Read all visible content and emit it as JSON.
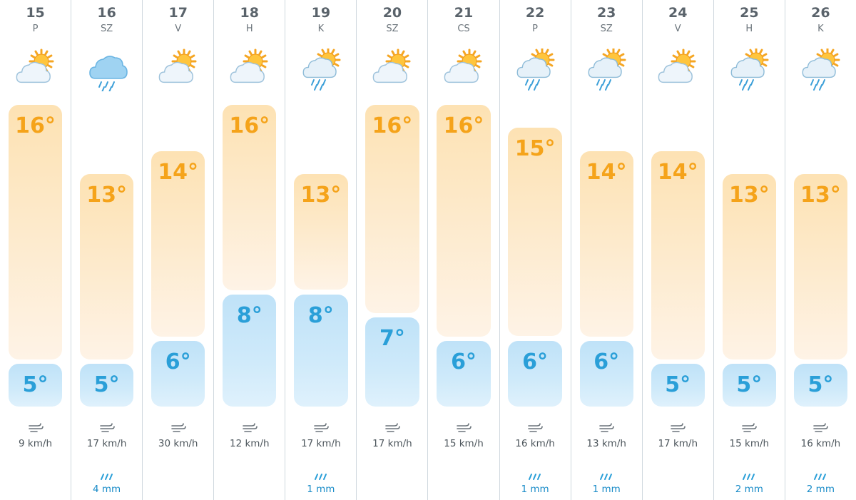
{
  "scale": {
    "tmin": 5,
    "tmax": 16
  },
  "colors": {
    "max_text": "#f5a31a",
    "min_text": "#2a9fd8",
    "precip_text": "#1a8cc8"
  },
  "days": [
    {
      "date": "15",
      "day": "P",
      "icon": "sun-cloud-icon",
      "tmax": "16°",
      "tmin": "5°",
      "tmax_value": 16,
      "tmin_value": 5,
      "wind": "9 km/h",
      "precip": ""
    },
    {
      "date": "16",
      "day": "SZ",
      "icon": "rain-cloud-icon",
      "tmax": "13°",
      "tmin": "5°",
      "tmax_value": 13,
      "tmin_value": 5,
      "wind": "17 km/h",
      "precip": "4 mm"
    },
    {
      "date": "17",
      "day": "V",
      "icon": "sun-cloud-icon",
      "tmax": "14°",
      "tmin": "6°",
      "tmax_value": 14,
      "tmin_value": 6,
      "wind": "30 km/h",
      "precip": ""
    },
    {
      "date": "18",
      "day": "H",
      "icon": "sun-cloud-icon",
      "tmax": "16°",
      "tmin": "8°",
      "tmax_value": 16,
      "tmin_value": 8,
      "wind": "12 km/h",
      "precip": ""
    },
    {
      "date": "19",
      "day": "K",
      "icon": "sun-rain-icon",
      "tmax": "13°",
      "tmin": "8°",
      "tmax_value": 13,
      "tmin_value": 8,
      "wind": "17 km/h",
      "precip": "1 mm"
    },
    {
      "date": "20",
      "day": "SZ",
      "icon": "sun-cloud-icon",
      "tmax": "16°",
      "tmin": "7°",
      "tmax_value": 16,
      "tmin_value": 7,
      "wind": "17 km/h",
      "precip": ""
    },
    {
      "date": "21",
      "day": "CS",
      "icon": "sun-cloud-icon",
      "tmax": "16°",
      "tmin": "6°",
      "tmax_value": 16,
      "tmin_value": 6,
      "wind": "15 km/h",
      "precip": ""
    },
    {
      "date": "22",
      "day": "P",
      "icon": "sun-rain-icon",
      "tmax": "15°",
      "tmin": "6°",
      "tmax_value": 15,
      "tmin_value": 6,
      "wind": "16 km/h",
      "precip": "1 mm"
    },
    {
      "date": "23",
      "day": "SZ",
      "icon": "sun-rain-icon",
      "tmax": "14°",
      "tmin": "6°",
      "tmax_value": 14,
      "tmin_value": 6,
      "wind": "13 km/h",
      "precip": "1 mm"
    },
    {
      "date": "24",
      "day": "V",
      "icon": "sun-cloud-icon",
      "tmax": "14°",
      "tmin": "5°",
      "tmax_value": 14,
      "tmin_value": 5,
      "wind": "17 km/h",
      "precip": ""
    },
    {
      "date": "25",
      "day": "H",
      "icon": "sun-rain-icon",
      "tmax": "13°",
      "tmin": "5°",
      "tmax_value": 13,
      "tmin_value": 5,
      "wind": "15 km/h",
      "precip": "2 mm"
    },
    {
      "date": "26",
      "day": "K",
      "icon": "sun-rain-icon",
      "tmax": "13°",
      "tmin": "5°",
      "tmax_value": 13,
      "tmin_value": 5,
      "wind": "16 km/h",
      "precip": "2 mm"
    }
  ]
}
